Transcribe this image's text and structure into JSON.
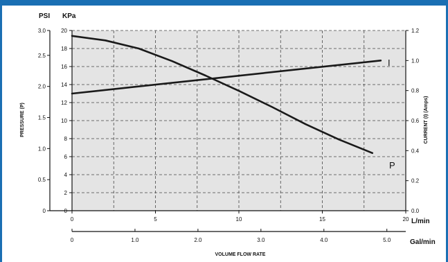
{
  "colors": {
    "frame": "#1a6fb3",
    "plot_bg": "#e4e4e4",
    "curve": "#1a1a1a",
    "grid": "#444444"
  },
  "chart_data": {
    "type": "line",
    "x_axis": {
      "unit": "L/min",
      "range": [
        0,
        20
      ],
      "ticks": [
        0,
        5,
        10,
        15,
        20
      ],
      "tick_labels": [
        "0",
        "5",
        "10",
        "15",
        "20"
      ]
    },
    "x2_axis": {
      "unit": "Gal/min",
      "range": [
        0,
        5.3
      ],
      "ticks": [
        0,
        1.0,
        2.0,
        3.0,
        4.0,
        5.0
      ],
      "tick_labels": [
        "0",
        "1.0",
        "2.0",
        "3.0",
        "4.0",
        "5.0"
      ],
      "title": "VOLUME FLOW RATE"
    },
    "y_left_kpa": {
      "unit": "KPa",
      "range": [
        0,
        20
      ],
      "ticks": [
        0,
        2,
        4,
        6,
        8,
        10,
        12,
        14,
        16,
        18,
        20
      ],
      "tick_labels": [
        "0",
        "2",
        "4",
        "6",
        "8",
        "10",
        "12",
        "14",
        "16",
        "18",
        "20"
      ]
    },
    "y_left_psi": {
      "unit": "PSI",
      "range": [
        0,
        2.9
      ],
      "ticks": [
        0,
        0.5,
        1.0,
        1.5,
        2.0,
        2.5,
        3.0
      ],
      "tick_labels": [
        "0",
        "0.5",
        "1.0",
        "1.5",
        "2.0",
        "2.5",
        "3.0"
      ],
      "title": "PRESSURE (P)"
    },
    "y_right": {
      "unit": "",
      "range": [
        0,
        1.2
      ],
      "ticks": [
        0.0,
        0.2,
        0.4,
        0.6,
        0.8,
        1.0,
        1.2
      ],
      "tick_labels": [
        "0.0",
        "0.2",
        "0.4",
        "0.6",
        "0.8",
        "1.0",
        "1.2"
      ],
      "title": "CURRENT (I) (Amps)"
    },
    "grid": true,
    "series": [
      {
        "name": "P",
        "axis": "kpa",
        "x": [
          0,
          2,
          4,
          6,
          8,
          10,
          12,
          14,
          16,
          18
        ],
        "y": [
          19.4,
          18.9,
          18.0,
          16.6,
          15.0,
          13.3,
          11.5,
          9.6,
          7.9,
          6.4
        ]
      },
      {
        "name": "I",
        "axis": "amps",
        "x": [
          0,
          18.5
        ],
        "y": [
          0.78,
          1.0
        ]
      }
    ]
  }
}
